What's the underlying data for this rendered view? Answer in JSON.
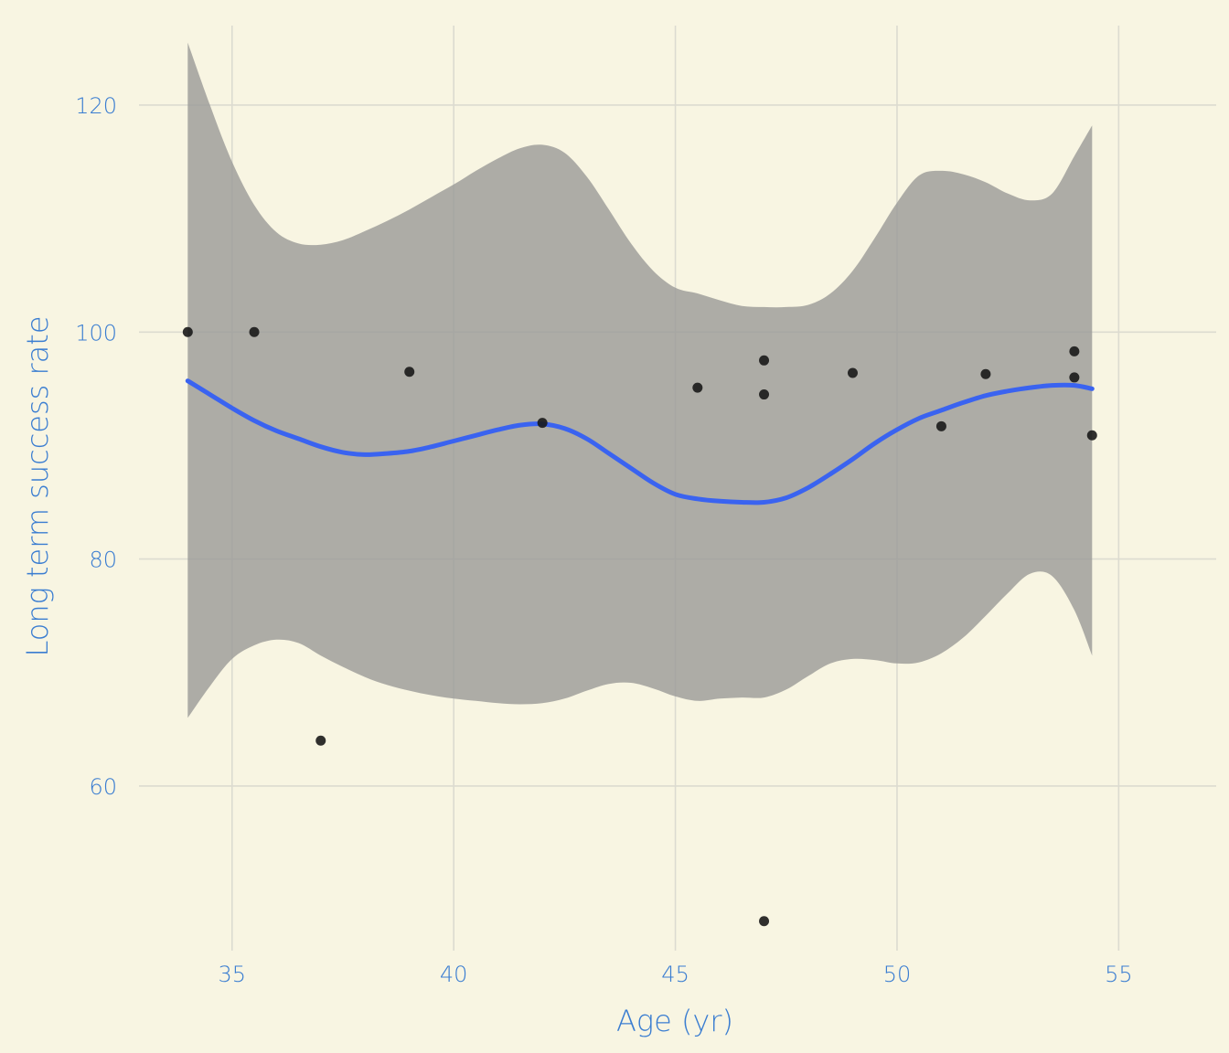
{
  "colors": {
    "background": "#f8f5e2",
    "grid": "#dcdbd0",
    "text": "#3a7dd1",
    "band": "#9a9a97",
    "line": "#3a63f0",
    "point": "#1a1a1a"
  },
  "chart_data": {
    "type": "scatter",
    "title": "",
    "xlabel": "Age (yr)",
    "ylabel": "Long term success rate",
    "xlim": [
      32.9,
      57.2
    ],
    "ylim": [
      45.5,
      127
    ],
    "x_ticks": [
      35,
      40,
      45,
      50,
      55
    ],
    "y_ticks": [
      60,
      80,
      100,
      120
    ],
    "grid": true,
    "legend": "none",
    "points": [
      {
        "x": 34,
        "y": 100
      },
      {
        "x": 35.5,
        "y": 100
      },
      {
        "x": 37,
        "y": 64
      },
      {
        "x": 39,
        "y": 96.5
      },
      {
        "x": 42,
        "y": 92
      },
      {
        "x": 45.5,
        "y": 95.1
      },
      {
        "x": 47,
        "y": 97.5
      },
      {
        "x": 47,
        "y": 94.5
      },
      {
        "x": 47,
        "y": 48.1
      },
      {
        "x": 49,
        "y": 96.4
      },
      {
        "x": 51,
        "y": 91.7
      },
      {
        "x": 52,
        "y": 96.3
      },
      {
        "x": 54,
        "y": 98.3
      },
      {
        "x": 54,
        "y": 96
      },
      {
        "x": 54.4,
        "y": 90.9
      }
    ],
    "smooth": {
      "method": "loess",
      "fit": [
        {
          "x": 34,
          "y": 95.7
        },
        {
          "x": 34.5,
          "y": 94.5
        },
        {
          "x": 35,
          "y": 93.3
        },
        {
          "x": 35.5,
          "y": 92.2
        },
        {
          "x": 36,
          "y": 91.3
        },
        {
          "x": 36.5,
          "y": 90.6
        },
        {
          "x": 37,
          "y": 89.9
        },
        {
          "x": 37.5,
          "y": 89.4
        },
        {
          "x": 38,
          "y": 89.2
        },
        {
          "x": 38.5,
          "y": 89.3
        },
        {
          "x": 39,
          "y": 89.5
        },
        {
          "x": 39.5,
          "y": 89.9
        },
        {
          "x": 40,
          "y": 90.4
        },
        {
          "x": 40.5,
          "y": 90.9
        },
        {
          "x": 41,
          "y": 91.4
        },
        {
          "x": 41.5,
          "y": 91.8
        },
        {
          "x": 42,
          "y": 91.9
        },
        {
          "x": 42.5,
          "y": 91.5
        },
        {
          "x": 43,
          "y": 90.6
        },
        {
          "x": 43.5,
          "y": 89.3
        },
        {
          "x": 44,
          "y": 88
        },
        {
          "x": 44.5,
          "y": 86.7
        },
        {
          "x": 45,
          "y": 85.7
        },
        {
          "x": 45.5,
          "y": 85.3
        },
        {
          "x": 46,
          "y": 85.1
        },
        {
          "x": 46.5,
          "y": 85
        },
        {
          "x": 47,
          "y": 85
        },
        {
          "x": 47.5,
          "y": 85.4
        },
        {
          "x": 48,
          "y": 86.3
        },
        {
          "x": 48.5,
          "y": 87.5
        },
        {
          "x": 49,
          "y": 88.8
        },
        {
          "x": 49.5,
          "y": 90.2
        },
        {
          "x": 50,
          "y": 91.4
        },
        {
          "x": 50.5,
          "y": 92.4
        },
        {
          "x": 51,
          "y": 93.1
        },
        {
          "x": 51.5,
          "y": 93.8
        },
        {
          "x": 52,
          "y": 94.4
        },
        {
          "x": 52.5,
          "y": 94.8
        },
        {
          "x": 53,
          "y": 95.1
        },
        {
          "x": 53.5,
          "y": 95.3
        },
        {
          "x": 54,
          "y": 95.3
        },
        {
          "x": 54.4,
          "y": 95
        }
      ],
      "upper": [
        {
          "x": 34,
          "y": 125.5
        },
        {
          "x": 34.5,
          "y": 120
        },
        {
          "x": 35,
          "y": 115
        },
        {
          "x": 35.5,
          "y": 111.2
        },
        {
          "x": 36,
          "y": 108.8
        },
        {
          "x": 36.5,
          "y": 107.8
        },
        {
          "x": 37,
          "y": 107.7
        },
        {
          "x": 37.5,
          "y": 108.1
        },
        {
          "x": 38,
          "y": 108.9
        },
        {
          "x": 38.5,
          "y": 109.8
        },
        {
          "x": 39,
          "y": 110.8
        },
        {
          "x": 39.5,
          "y": 111.9
        },
        {
          "x": 40,
          "y": 113
        },
        {
          "x": 40.5,
          "y": 114.2
        },
        {
          "x": 41,
          "y": 115.3
        },
        {
          "x": 41.5,
          "y": 116.2
        },
        {
          "x": 42,
          "y": 116.5
        },
        {
          "x": 42.5,
          "y": 115.8
        },
        {
          "x": 43,
          "y": 113.7
        },
        {
          "x": 43.5,
          "y": 110.8
        },
        {
          "x": 44,
          "y": 107.8
        },
        {
          "x": 44.5,
          "y": 105.4
        },
        {
          "x": 45,
          "y": 103.9
        },
        {
          "x": 45.5,
          "y": 103.4
        },
        {
          "x": 46,
          "y": 102.8
        },
        {
          "x": 46.5,
          "y": 102.3
        },
        {
          "x": 47,
          "y": 102.2
        },
        {
          "x": 47.5,
          "y": 102.2
        },
        {
          "x": 48,
          "y": 102.4
        },
        {
          "x": 48.5,
          "y": 103.4
        },
        {
          "x": 49,
          "y": 105.4
        },
        {
          "x": 49.5,
          "y": 108.3
        },
        {
          "x": 50,
          "y": 111.4
        },
        {
          "x": 50.5,
          "y": 113.8
        },
        {
          "x": 51,
          "y": 114.2
        },
        {
          "x": 51.5,
          "y": 113.9
        },
        {
          "x": 52,
          "y": 113.2
        },
        {
          "x": 52.5,
          "y": 112.2
        },
        {
          "x": 53,
          "y": 111.6
        },
        {
          "x": 53.5,
          "y": 112.2
        },
        {
          "x": 54,
          "y": 115.5
        },
        {
          "x": 54.4,
          "y": 118.2
        }
      ],
      "lower": [
        {
          "x": 34,
          "y": 66
        },
        {
          "x": 34.5,
          "y": 68.8
        },
        {
          "x": 35,
          "y": 71.2
        },
        {
          "x": 35.5,
          "y": 72.4
        },
        {
          "x": 36,
          "y": 72.9
        },
        {
          "x": 36.5,
          "y": 72.6
        },
        {
          "x": 37,
          "y": 71.5
        },
        {
          "x": 37.5,
          "y": 70.5
        },
        {
          "x": 38,
          "y": 69.6
        },
        {
          "x": 38.5,
          "y": 68.9
        },
        {
          "x": 39,
          "y": 68.4
        },
        {
          "x": 39.5,
          "y": 68
        },
        {
          "x": 40,
          "y": 67.7
        },
        {
          "x": 40.5,
          "y": 67.5
        },
        {
          "x": 41,
          "y": 67.3
        },
        {
          "x": 41.5,
          "y": 67.2
        },
        {
          "x": 42,
          "y": 67.3
        },
        {
          "x": 42.5,
          "y": 67.7
        },
        {
          "x": 43,
          "y": 68.4
        },
        {
          "x": 43.5,
          "y": 69
        },
        {
          "x": 44,
          "y": 69.1
        },
        {
          "x": 44.5,
          "y": 68.6
        },
        {
          "x": 45,
          "y": 67.9
        },
        {
          "x": 45.5,
          "y": 67.5
        },
        {
          "x": 46,
          "y": 67.7
        },
        {
          "x": 46.5,
          "y": 67.8
        },
        {
          "x": 47,
          "y": 67.8
        },
        {
          "x": 47.5,
          "y": 68.5
        },
        {
          "x": 48,
          "y": 69.7
        },
        {
          "x": 48.5,
          "y": 70.8
        },
        {
          "x": 49,
          "y": 71.2
        },
        {
          "x": 49.5,
          "y": 71.1
        },
        {
          "x": 50,
          "y": 70.8
        },
        {
          "x": 50.5,
          "y": 70.9
        },
        {
          "x": 51,
          "y": 71.7
        },
        {
          "x": 51.5,
          "y": 73.1
        },
        {
          "x": 52,
          "y": 75
        },
        {
          "x": 52.5,
          "y": 77
        },
        {
          "x": 53,
          "y": 78.7
        },
        {
          "x": 53.5,
          "y": 78.5
        },
        {
          "x": 54,
          "y": 75.5
        },
        {
          "x": 54.4,
          "y": 71.5
        }
      ]
    }
  }
}
